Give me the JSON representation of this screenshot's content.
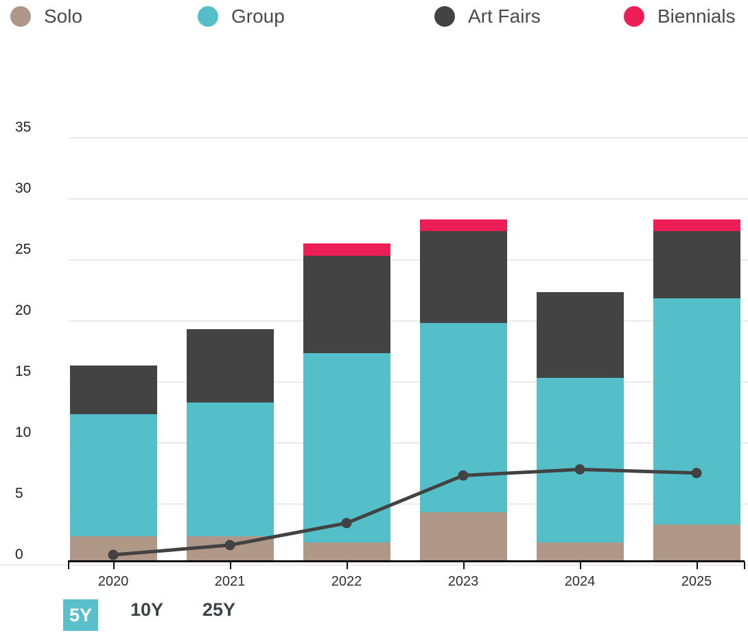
{
  "legend": {
    "items": [
      {
        "label": "Solo",
        "color": "#AF9888"
      },
      {
        "label": "Group",
        "color": "#55BFC9"
      },
      {
        "label": "Art Fairs",
        "color": "#434343"
      },
      {
        "label": "Biennials",
        "color": "#EC1E55"
      }
    ]
  },
  "time_range": {
    "options": [
      {
        "label": "5Y",
        "selected": true
      },
      {
        "label": "10Y",
        "selected": false
      },
      {
        "label": "25Y",
        "selected": false
      }
    ],
    "active_bg_color": "#5BBFCA",
    "active_text_color": "#FFFFFF",
    "inactive_text_color": "#3E4347"
  },
  "chart_data": {
    "type": "bar",
    "stacked": true,
    "title": "",
    "xlabel": "",
    "ylabel": "",
    "categories": [
      "2020",
      "2021",
      "2022",
      "2023",
      "2024",
      "2025"
    ],
    "series": [
      {
        "name": "Solo",
        "type": "bar",
        "color": "#AF9888",
        "values": [
          2,
          2,
          1.5,
          4,
          1.5,
          3
        ]
      },
      {
        "name": "Group",
        "type": "bar",
        "color": "#55BFC9",
        "values": [
          10,
          11,
          15.5,
          15.5,
          13.5,
          18.5
        ]
      },
      {
        "name": "Art Fairs",
        "type": "bar",
        "color": "#434343",
        "values": [
          4,
          6,
          8,
          7.5,
          7,
          5.5
        ]
      },
      {
        "name": "Biennials",
        "type": "bar",
        "color": "#EC1E55",
        "values": [
          0,
          0,
          1,
          1,
          0,
          1
        ]
      },
      {
        "name": "trend-line",
        "type": "line",
        "color": "#424242",
        "values": [
          0.5,
          1.3,
          3.1,
          7,
          7.5,
          7.2
        ]
      }
    ],
    "stack_totals": [
      16,
      19,
      26,
      28,
      22,
      28
    ],
    "ylim": [
      0,
      35
    ],
    "yticks": [
      0,
      5,
      10,
      15,
      20,
      25,
      30,
      35
    ],
    "grid": true,
    "legend_position": "top",
    "gridline_color": "#EBEBEB",
    "axis_color": "#0D0D0D"
  }
}
